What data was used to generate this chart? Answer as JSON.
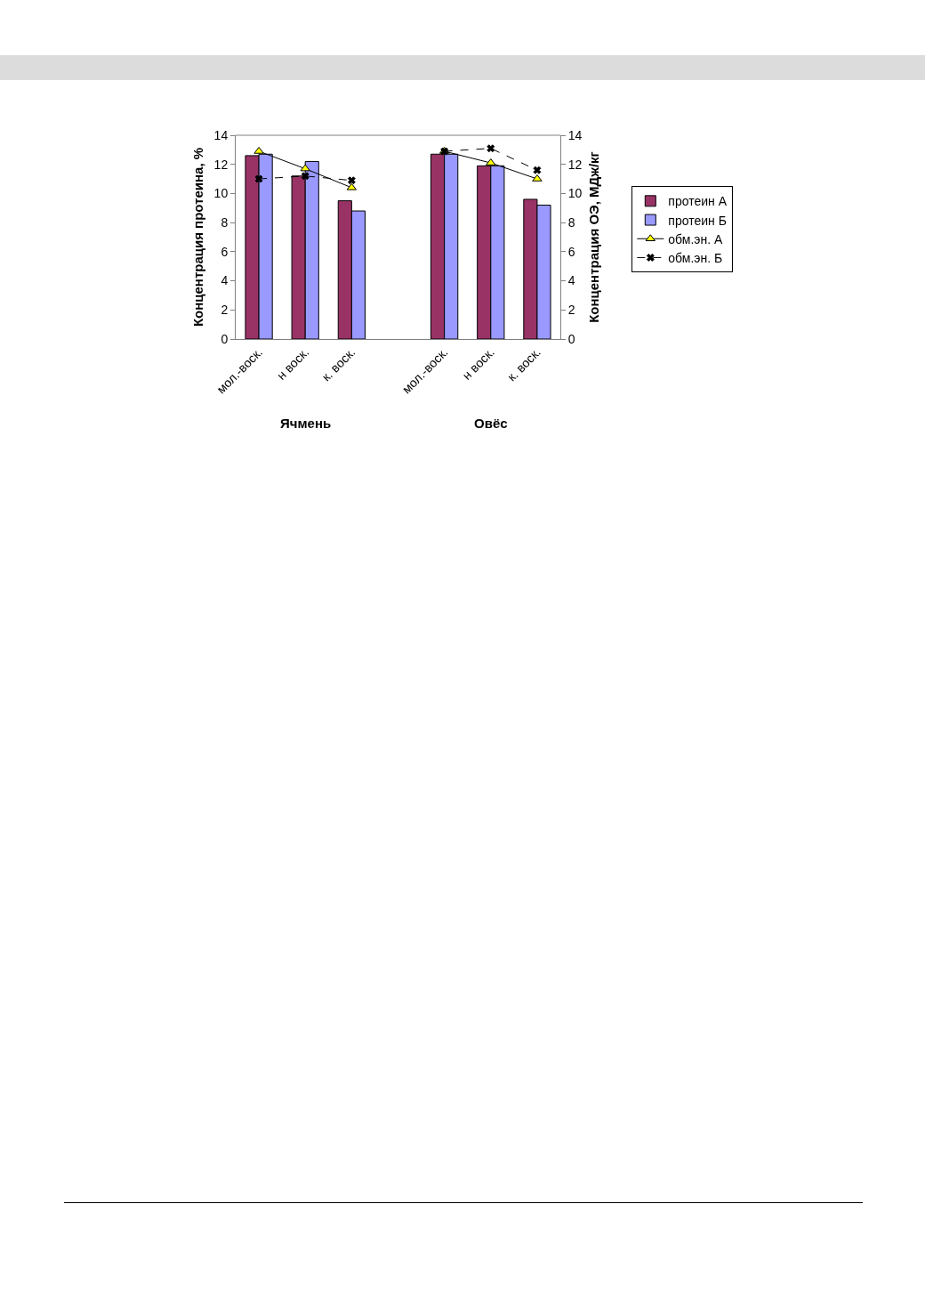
{
  "chart_data": {
    "type": "bar",
    "ylabel": "Концентрация протеина, %",
    "y2label": "Концентрация ОЭ, МДж/кг",
    "categories": [
      "мол.-воск.",
      "н воск.",
      "к. воск.",
      null,
      "мол.-воск.",
      "н воск.",
      "к. воск."
    ],
    "series": [
      {
        "name": "протеин А",
        "color": "#993366",
        "values": [
          12.6,
          11.2,
          9.5,
          null,
          12.7,
          11.9,
          9.6
        ]
      },
      {
        "name": "протеин Б",
        "color": "#9999ff",
        "values": [
          12.7,
          12.2,
          8.8,
          null,
          12.7,
          11.9,
          9.2
        ]
      },
      {
        "name": "обм.эн. А",
        "type": "line",
        "axis": "y2",
        "color": "#000000",
        "marker": "triangle",
        "line_style": "solid",
        "values": [
          12.9,
          11.7,
          10.4,
          null,
          12.9,
          12.1,
          11.0
        ]
      },
      {
        "name": "обм.эн. Б",
        "type": "line",
        "axis": "y2",
        "color": "#000000",
        "marker": "cross",
        "line_style": "dashed",
        "values": [
          11.0,
          11.2,
          10.9,
          null,
          12.9,
          13.1,
          11.6
        ]
      }
    ],
    "ylim": [
      0,
      14
    ],
    "yticks": [
      0,
      2,
      4,
      6,
      8,
      10,
      12,
      14
    ],
    "y2lim": [
      0,
      14
    ],
    "y2ticks": [
      0,
      2,
      4,
      6,
      8,
      10,
      12,
      14
    ],
    "annotations": [
      "Ячмень",
      "Овёс"
    ],
    "grid": false,
    "legend": "right"
  }
}
